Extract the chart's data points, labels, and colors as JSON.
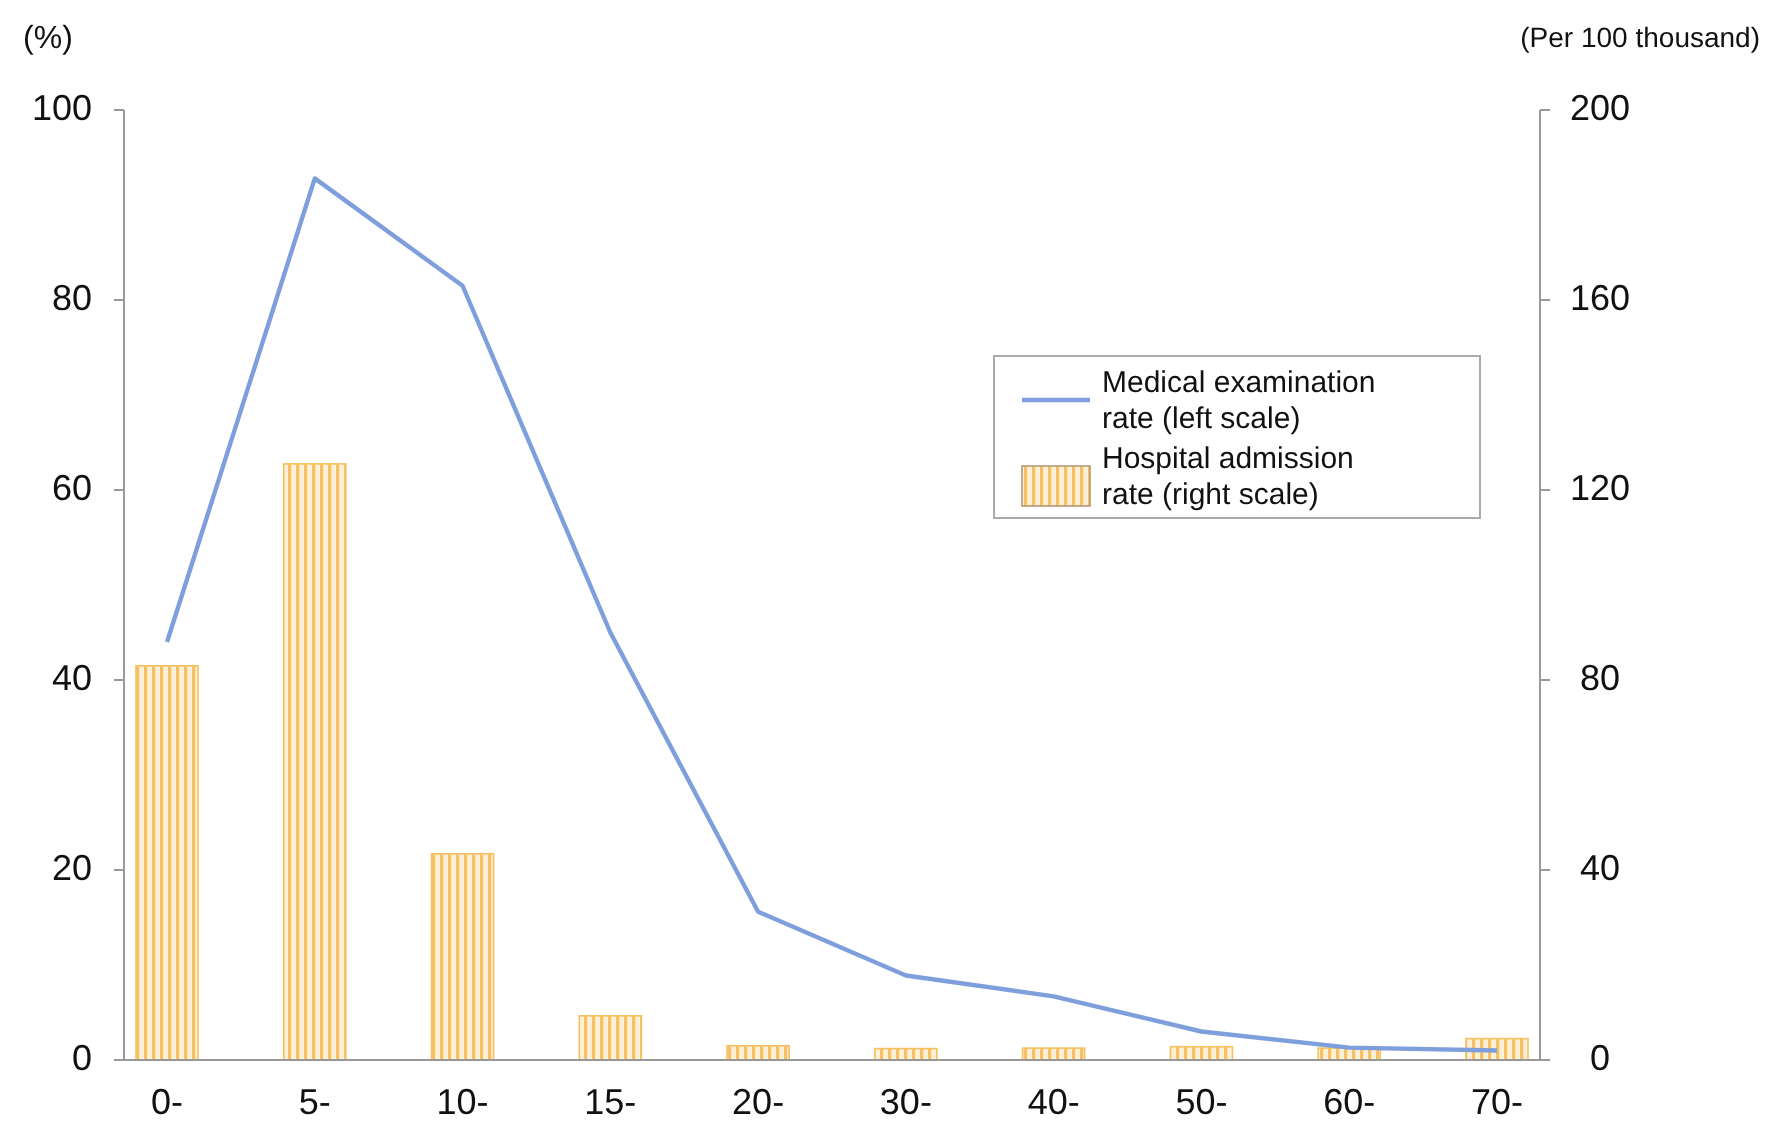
{
  "chart_data": {
    "type": "bar",
    "ylabel": "(%)",
    "y2label": "(Per 100 thousand)",
    "categories": [
      "0-",
      "5-",
      "10-",
      "15-",
      "20-",
      "30-",
      "40-",
      "50-",
      "60-",
      "70-"
    ],
    "series": [
      {
        "name": "Medical examination rate (left scale)",
        "type": "line",
        "color": "#7f9fdc",
        "values": [
          44,
          92.8,
          81.5,
          45,
          15.6,
          8.9,
          6.7,
          3,
          1.3,
          1
        ]
      },
      {
        "name": "Hospital admission rate  (right scale)",
        "axis": "y2",
        "color": "#f7c062",
        "values": [
          83,
          125.5,
          43.4,
          9.3,
          3,
          2.4,
          2.5,
          2.8,
          2.5,
          4.5
        ]
      }
    ],
    "ylim": [
      0,
      100
    ],
    "yticks": [
      0,
      20,
      40,
      60,
      80,
      100
    ],
    "y2lim": [
      0,
      200
    ],
    "y2ticks": [
      0,
      40,
      80,
      120,
      160,
      200
    ],
    "legend": "top right",
    "grid": false,
    "marker": "none",
    "line_style": "solid"
  }
}
